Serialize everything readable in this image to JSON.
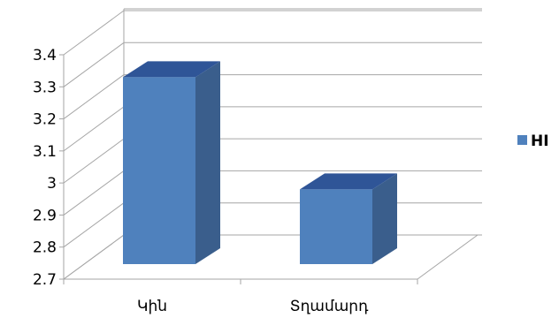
{
  "chart_data": {
    "type": "bar",
    "style": "3d-column",
    "categories": [
      "Կին",
      "Տղամարդ"
    ],
    "series": [
      {
        "name": "HI",
        "values": [
          3.33,
          2.98
        ],
        "color": "#4F81BD"
      }
    ],
    "ylim": [
      2.7,
      3.4
    ],
    "y_ticks": [
      "2.7",
      "2.8",
      "2.9",
      "3",
      "3.1",
      "3.2",
      "3.3",
      "3.4"
    ],
    "grid": true,
    "legend_position": "right",
    "title": "",
    "xlabel": "",
    "ylabel": ""
  },
  "colors": {
    "bar_front": "#4F81BD",
    "bar_side": "#3A5E8C",
    "bar_top": "#2F5597",
    "grid": "#A6A6A6"
  }
}
